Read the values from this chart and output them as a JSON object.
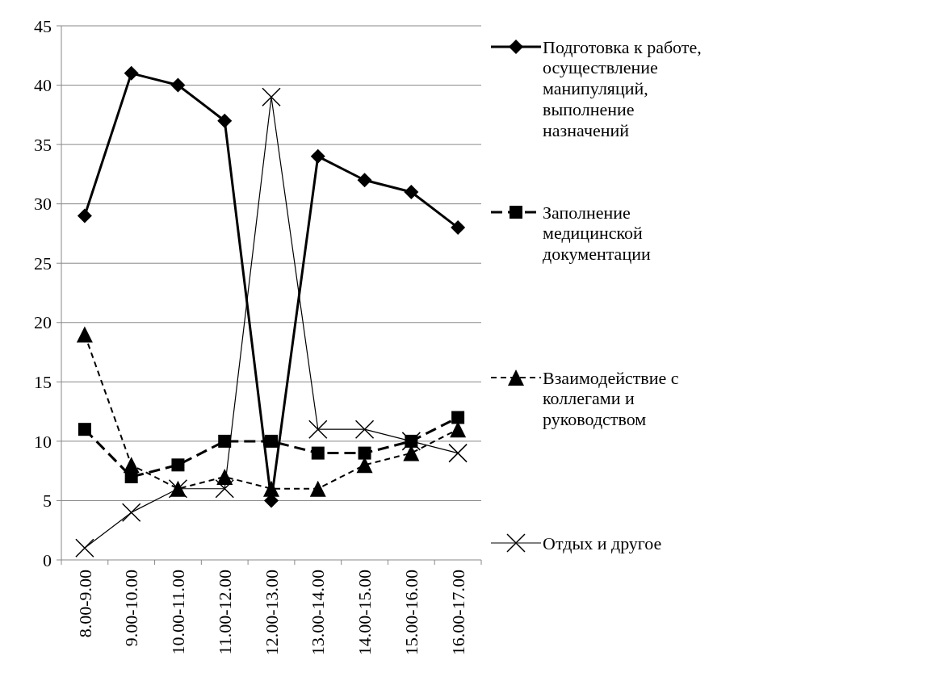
{
  "chart_data": {
    "type": "line",
    "categories": [
      "8.00-9.00",
      "9.00-10.00",
      "10.00-11.00",
      "11.00-12.00",
      "12.00-13.00",
      "13.00-14.00",
      "14.00-15.00",
      "15.00-16.00",
      "16.00-17.00"
    ],
    "series": [
      {
        "name": "Подготовка к работе, осуществление манипуляций, выполнение назначений",
        "color": "#000000",
        "marker": "diamond",
        "line_style": "solid",
        "values": [
          29,
          41,
          40,
          37,
          5,
          34,
          32,
          31,
          28
        ]
      },
      {
        "name": "Заполнение медицинской документации",
        "color": "#000000",
        "marker": "square",
        "line_style": "dashed",
        "values": [
          11,
          7,
          8,
          10,
          10,
          9,
          9,
          10,
          12
        ]
      },
      {
        "name": "Взаимодействие с коллегами и руководством",
        "color": "#000000",
        "marker": "triangle",
        "line_style": "dashed",
        "values": [
          19,
          8,
          6,
          7,
          6,
          6,
          8,
          9,
          11
        ]
      },
      {
        "name": "Отдых и другое",
        "color": "#000000",
        "marker": "cross",
        "line_style": "solid",
        "values": [
          1,
          4,
          6,
          6,
          39,
          11,
          11,
          10,
          9
        ]
      }
    ],
    "ylim": [
      0,
      45
    ],
    "yticks": [
      0,
      5,
      10,
      15,
      20,
      25,
      30,
      35,
      40,
      45
    ],
    "grid": "y",
    "legend": "right"
  }
}
